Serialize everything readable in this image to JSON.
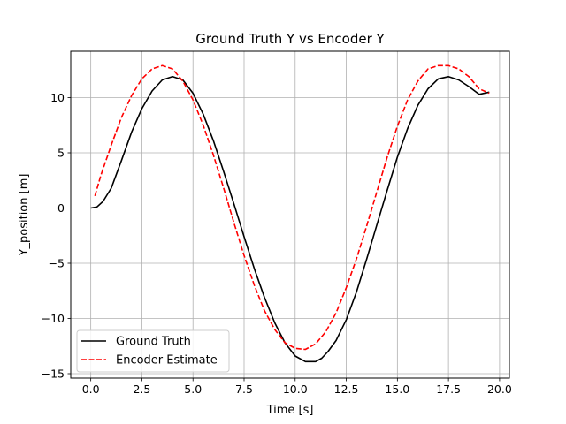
{
  "chart_data": {
    "type": "line",
    "title": "Ground Truth Y vs Encoder Y",
    "xlabel": "Time [s]",
    "ylabel": "Y_position [m]",
    "xlim": [
      -0.98,
      20.48
    ],
    "ylim": [
      -15.4,
      14.2
    ],
    "xticks": [
      0.0,
      2.5,
      5.0,
      7.5,
      10.0,
      12.5,
      15.0,
      17.5,
      20.0
    ],
    "xtick_labels": [
      "0.0",
      "2.5",
      "5.0",
      "7.5",
      "10.0",
      "12.5",
      "15.0",
      "17.5",
      "20.0"
    ],
    "yticks": [
      -15,
      -10,
      -5,
      0,
      5,
      10
    ],
    "ytick_labels": [
      "−15",
      "−10",
      "−5",
      "0",
      "5",
      "10"
    ],
    "grid": true,
    "legend_position": "lower-left",
    "series": [
      {
        "name": "Ground Truth",
        "color": "#000000",
        "style": "solid",
        "x": [
          0.0,
          0.3,
          0.6,
          1.0,
          1.5,
          2.0,
          2.5,
          3.0,
          3.5,
          4.0,
          4.5,
          5.0,
          5.5,
          6.0,
          6.5,
          7.0,
          7.5,
          8.0,
          8.5,
          9.0,
          9.5,
          10.0,
          10.5,
          11.0,
          11.3,
          11.6,
          12.0,
          12.5,
          13.0,
          13.5,
          14.0,
          14.5,
          15.0,
          15.5,
          16.0,
          16.5,
          17.0,
          17.5,
          18.0,
          18.5,
          19.0,
          19.5
        ],
        "y": [
          0.0,
          0.1,
          0.6,
          1.8,
          4.3,
          6.9,
          9.0,
          10.6,
          11.6,
          11.9,
          11.6,
          10.4,
          8.5,
          6.1,
          3.3,
          0.4,
          -2.6,
          -5.5,
          -8.1,
          -10.4,
          -12.2,
          -13.4,
          -13.9,
          -13.9,
          -13.6,
          -13.0,
          -12.0,
          -10.1,
          -7.6,
          -4.6,
          -1.5,
          1.6,
          4.6,
          7.2,
          9.3,
          10.8,
          11.7,
          11.9,
          11.6,
          11.0,
          10.3,
          10.5
        ]
      },
      {
        "name": "Encoder Estimate",
        "color": "#ff0000",
        "style": "dashed",
        "x": [
          0.2,
          0.5,
          1.0,
          1.5,
          2.0,
          2.5,
          3.0,
          3.5,
          4.0,
          4.5,
          5.0,
          5.5,
          6.0,
          6.5,
          7.0,
          7.5,
          8.0,
          8.5,
          9.0,
          9.5,
          10.0,
          10.5,
          11.0,
          11.5,
          12.0,
          12.5,
          13.0,
          13.5,
          14.0,
          14.5,
          15.0,
          15.5,
          16.0,
          16.5,
          17.0,
          17.5,
          18.0,
          18.5,
          19.0,
          19.5
        ],
        "y": [
          1.1,
          3.0,
          5.7,
          8.2,
          10.2,
          11.7,
          12.6,
          12.9,
          12.6,
          11.5,
          9.8,
          7.5,
          4.8,
          1.8,
          -1.3,
          -4.3,
          -7.0,
          -9.3,
          -11.0,
          -12.2,
          -12.7,
          -12.8,
          -12.3,
          -11.2,
          -9.5,
          -7.2,
          -4.6,
          -1.6,
          1.5,
          4.6,
          7.4,
          9.8,
          11.5,
          12.6,
          12.9,
          12.9,
          12.6,
          11.9,
          10.8,
          10.4
        ]
      }
    ]
  }
}
